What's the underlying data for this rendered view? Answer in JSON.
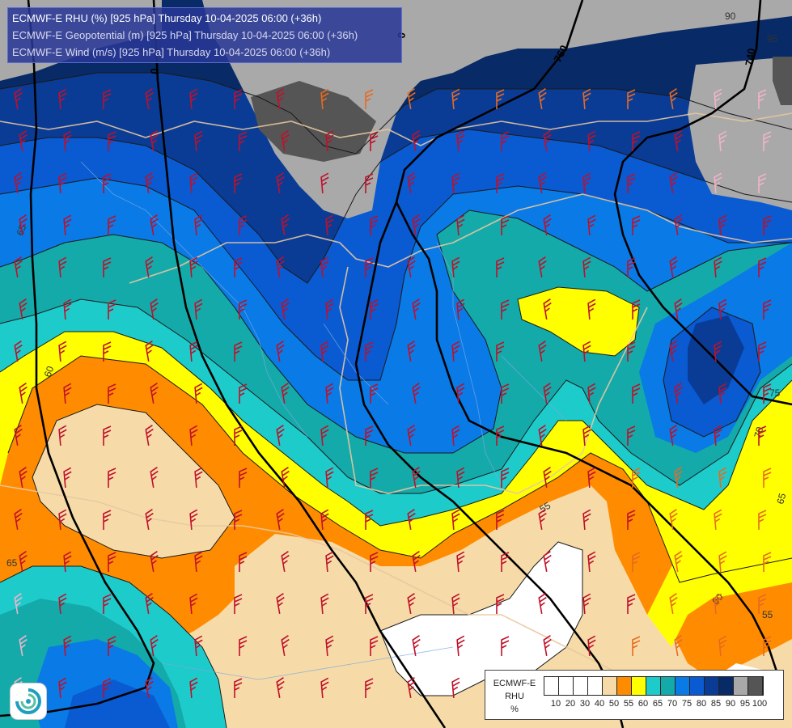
{
  "titles": [
    "ECMWF-E RHU (%) [925 hPa] Thursday 10-04-2025 06:00 (+36h)",
    "ECMWF-E Geopotential (m) [925 hPa] Thursday 10-04-2025 06:00 (+36h)",
    "ECMWF-E Wind (m/s) [925 hPa] Thursday 10-04-2025 06:00 (+36h)"
  ],
  "legend": {
    "model": "ECMWF-E",
    "variable": "RHU",
    "unit": "%",
    "ticks": [
      "10",
      "20",
      "30",
      "40",
      "50",
      "55",
      "60",
      "65",
      "70",
      "75",
      "80",
      "85",
      "90",
      "95",
      "100"
    ],
    "colors": [
      "#ffffff",
      "#ffffff",
      "#ffffff",
      "#ffffff",
      "#f6dba9",
      "#ff8c00",
      "#ffff00",
      "#1ecbcb",
      "#15aaaa",
      "#0a7ae6",
      "#0a5ad2",
      "#0a3c96",
      "#082a66",
      "#a9a9a9",
      "#555555"
    ]
  },
  "contour_labels": {
    "rhu": [
      "60",
      "55",
      "65",
      "60",
      "55",
      "75",
      "70",
      "65",
      "65",
      "90",
      "95"
    ],
    "geopotential": [
      "760",
      "740",
      "0",
      "0"
    ]
  },
  "colors": {
    "white": "#ffffff",
    "tan": "#f6dba9",
    "orange": "#ff8c00",
    "yellow": "#ffff00",
    "cyan": "#1ecbcb",
    "teal": "#15aaaa",
    "blue_light": "#0a7ae6",
    "blue": "#0a5ad2",
    "blue_dark": "#0a3c96",
    "navy": "#082a66",
    "gray": "#a9a9a9",
    "dark_gray": "#555555",
    "barb_red": "#c0102a",
    "barb_orange": "#e86a20",
    "barb_pink": "#f0b4c8"
  },
  "icons": {
    "logo": "ecmwf-swirl-icon"
  }
}
